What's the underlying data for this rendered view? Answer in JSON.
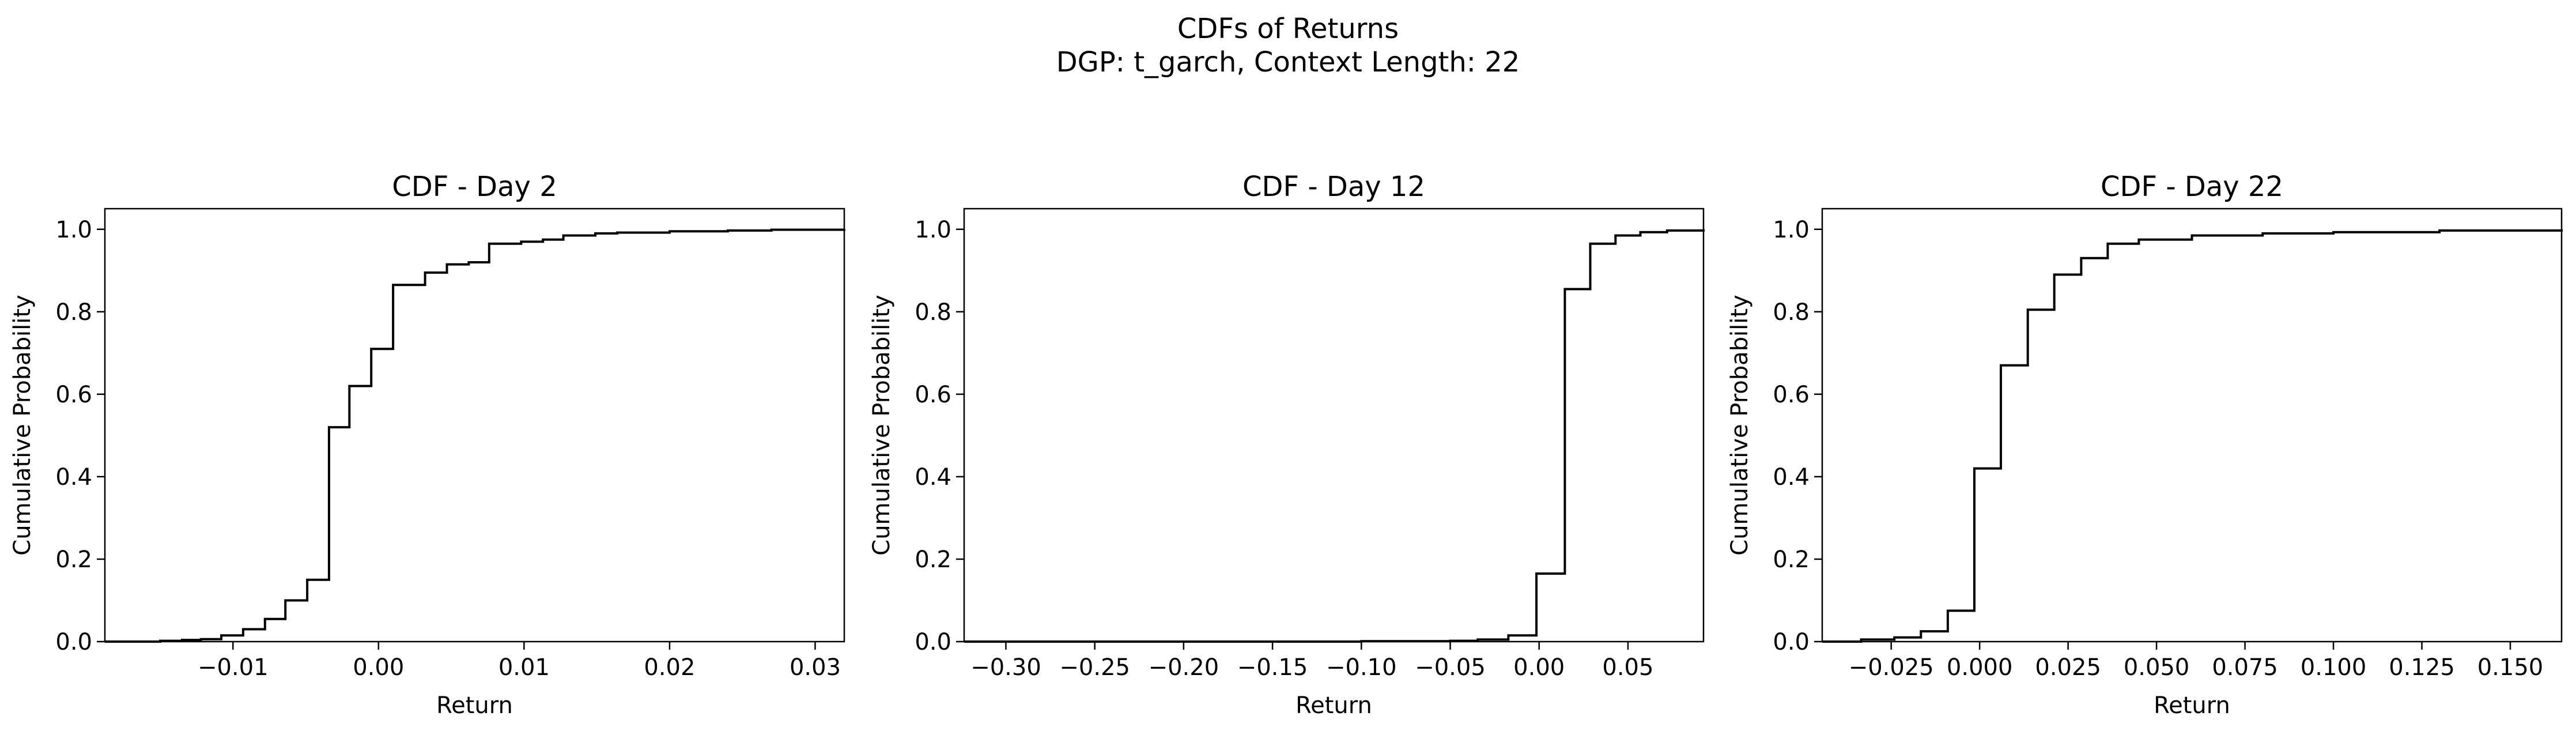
{
  "figure": {
    "suptitle_line1": "CDFs of Returns",
    "suptitle_line2": "DGP: t_garch, Context Length: 22"
  },
  "chart_data": [
    {
      "type": "line",
      "step": true,
      "title": "CDF - Day 2",
      "xlabel": "Return",
      "ylabel": "Cumulative Probability",
      "xlim": [
        -0.0188,
        0.032
      ],
      "ylim": [
        0,
        1.05
      ],
      "xticks": [
        -0.01,
        0.0,
        0.01,
        0.02,
        0.03
      ],
      "xtick_labels": [
        "−0.01",
        "0.00",
        "0.01",
        "0.02",
        "0.03"
      ],
      "yticks": [
        0.0,
        0.2,
        0.4,
        0.6,
        0.8,
        1.0
      ],
      "ytick_labels": [
        "0.0",
        "0.2",
        "0.4",
        "0.6",
        "0.8",
        "1.0"
      ],
      "grid": false,
      "color": "#000000",
      "series": [
        {
          "x": [
            -0.0188,
            -0.015,
            -0.0135,
            -0.0122,
            -0.0108,
            -0.0093,
            -0.0078,
            -0.0064,
            -0.0049,
            -0.0034,
            -0.002,
            -0.0005,
            0.001,
            0.0032,
            0.0047,
            0.0062,
            0.0076,
            0.0098,
            0.0113,
            0.0127,
            0.0149,
            0.0164,
            0.02,
            0.024,
            0.027,
            0.032
          ],
          "y": [
            0.0,
            0.002,
            0.004,
            0.006,
            0.015,
            0.03,
            0.055,
            0.1,
            0.15,
            0.52,
            0.62,
            0.71,
            0.865,
            0.895,
            0.915,
            0.92,
            0.965,
            0.97,
            0.975,
            0.985,
            0.99,
            0.992,
            0.995,
            0.997,
            0.999,
            1.0
          ]
        }
      ]
    },
    {
      "type": "line",
      "step": true,
      "title": "CDF - Day 12",
      "xlabel": "Return",
      "ylabel": "Cumulative Probability",
      "xlim": [
        -0.3235,
        0.0925
      ],
      "ylim": [
        0,
        1.05
      ],
      "xticks": [
        -0.3,
        -0.25,
        -0.2,
        -0.15,
        -0.1,
        -0.05,
        0.0,
        0.05
      ],
      "xtick_labels": [
        "−0.30",
        "−0.25",
        "−0.20",
        "−0.15",
        "−0.10",
        "−0.05",
        "0.00",
        "0.05"
      ],
      "yticks": [
        0.0,
        0.2,
        0.4,
        0.6,
        0.8,
        1.0
      ],
      "ytick_labels": [
        "0.0",
        "0.2",
        "0.4",
        "0.6",
        "0.8",
        "1.0"
      ],
      "grid": false,
      "color": "#000000",
      "series": [
        {
          "x": [
            -0.3235,
            -0.1,
            -0.05,
            -0.0345,
            -0.0173,
            -0.0015,
            0.0145,
            0.0288,
            0.043,
            0.057,
            0.072,
            0.0925
          ],
          "y": [
            0.0,
            0.001,
            0.002,
            0.005,
            0.015,
            0.165,
            0.855,
            0.965,
            0.985,
            0.993,
            0.997,
            1.0
          ]
        }
      ]
    },
    {
      "type": "line",
      "step": true,
      "title": "CDF - Day 22",
      "xlabel": "Return",
      "ylabel": "Cumulative Probability",
      "xlim": [
        -0.0445,
        0.1645
      ],
      "ylim": [
        0,
        1.05
      ],
      "xticks": [
        -0.025,
        0.0,
        0.025,
        0.05,
        0.075,
        0.1,
        0.125,
        0.15
      ],
      "xtick_labels": [
        "−0.025",
        "0.000",
        "0.025",
        "0.050",
        "0.075",
        "0.100",
        "0.125",
        "0.150"
      ],
      "yticks": [
        0.0,
        0.2,
        0.4,
        0.6,
        0.8,
        1.0
      ],
      "ytick_labels": [
        "0.0",
        "0.2",
        "0.4",
        "0.6",
        "0.8",
        "1.0"
      ],
      "grid": false,
      "color": "#000000",
      "series": [
        {
          "x": [
            -0.0445,
            -0.0335,
            -0.0241,
            -0.0166,
            -0.009,
            -0.0015,
            0.006,
            0.0136,
            0.0211,
            0.0287,
            0.0362,
            0.045,
            0.06,
            0.08,
            0.1,
            0.13,
            0.1645
          ],
          "y": [
            0.0,
            0.005,
            0.01,
            0.025,
            0.075,
            0.42,
            0.67,
            0.805,
            0.89,
            0.93,
            0.965,
            0.975,
            0.985,
            0.99,
            0.993,
            0.997,
            1.0
          ]
        }
      ]
    }
  ]
}
